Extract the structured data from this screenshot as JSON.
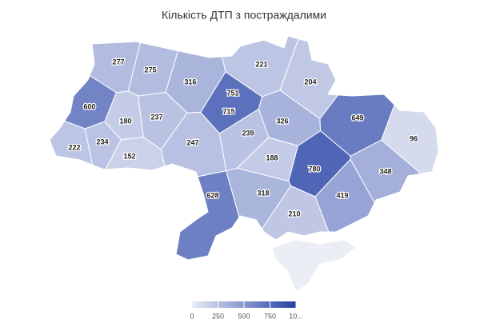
{
  "chart_data": {
    "type": "map",
    "title": "Кількість ДТП з постраждалими",
    "values": [
      277,
      275,
      221,
      316,
      751,
      204,
      600,
      715,
      180,
      237,
      326,
      649,
      239,
      96,
      222,
      234,
      247,
      152,
      188,
      780,
      348,
      628,
      318,
      419,
      210
    ],
    "colorlim": [
      0,
      1000
    ],
    "colors": [
      "#e8ebf5",
      "#2440a6"
    ],
    "legend_ticks": [
      0,
      250,
      500,
      750,
      {
        "value": 1000,
        "label": "10..."
      }
    ]
  }
}
